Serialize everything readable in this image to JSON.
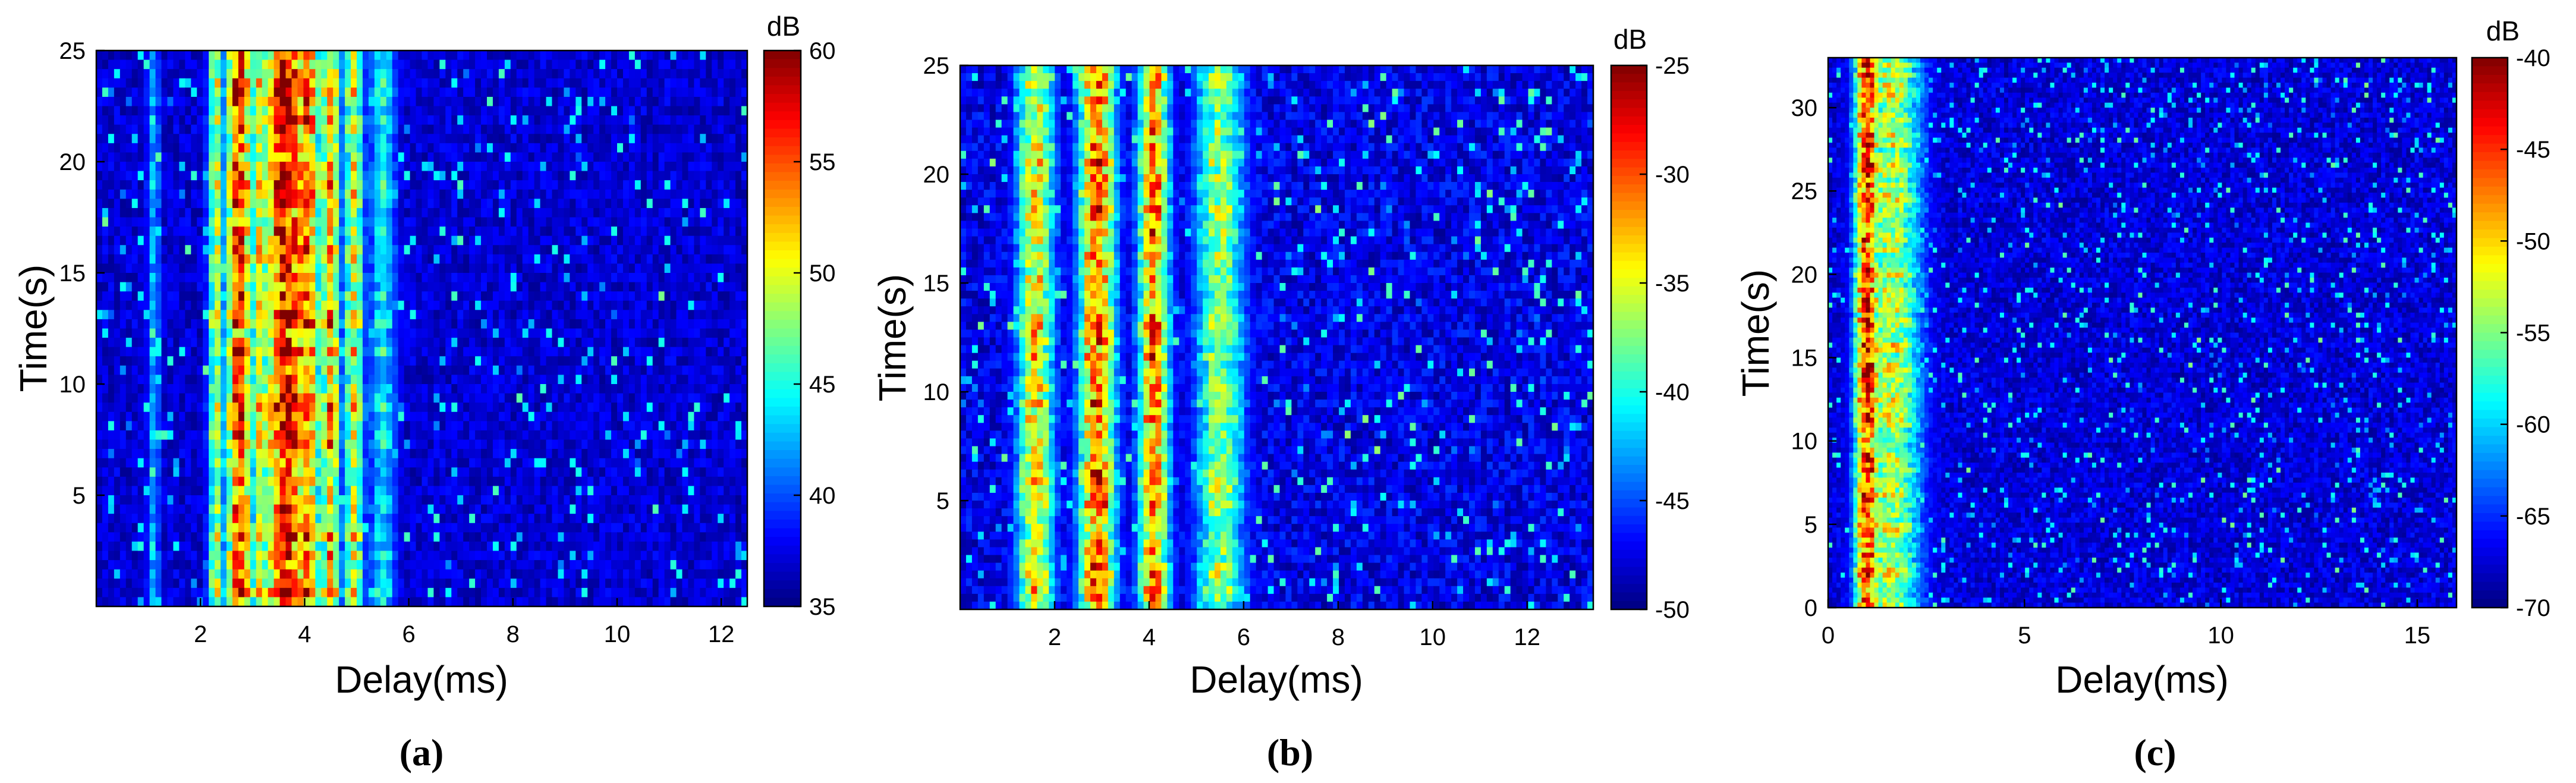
{
  "figure": {
    "panels": [
      "(a)",
      "(b)",
      "(c)"
    ]
  },
  "chart_data": [
    {
      "type": "heatmap",
      "panel_label": "(a)",
      "title": "",
      "xlabel": "Delay(ms)",
      "ylabel": "Time(s)",
      "xlim": [
        0,
        12.5
      ],
      "ylim": [
        0,
        25
      ],
      "xticks": [
        2,
        4,
        6,
        8,
        10,
        12
      ],
      "yticks": [
        5,
        10,
        15,
        20,
        25
      ],
      "colorbar": {
        "label": "dB",
        "min": 35,
        "max": 60,
        "ticks": [
          35,
          40,
          45,
          50,
          55,
          60
        ],
        "colormap": "jet"
      },
      "features": [
        {
          "delay_ms": 2.3,
          "level_db": 50,
          "width_ms": 0.12
        },
        {
          "delay_ms": 2.75,
          "level_db": 58,
          "width_ms": 0.2
        },
        {
          "delay_ms": 3.15,
          "level_db": 52,
          "width_ms": 0.15
        },
        {
          "delay_ms": 3.65,
          "level_db": 59,
          "width_ms": 0.35
        },
        {
          "delay_ms": 4.05,
          "level_db": 56,
          "width_ms": 0.2
        },
        {
          "delay_ms": 4.5,
          "level_db": 54,
          "width_ms": 0.15
        },
        {
          "delay_ms": 4.95,
          "level_db": 51,
          "width_ms": 0.15
        },
        {
          "delay_ms": 5.5,
          "level_db": 45,
          "width_ms": 0.2
        },
        {
          "delay_ms": 1.1,
          "level_db": 43,
          "width_ms": 0.1
        }
      ]
    },
    {
      "type": "heatmap",
      "panel_label": "(b)",
      "title": "",
      "xlabel": "Delay(ms)",
      "ylabel": "Time(s)",
      "xlim": [
        0,
        13.4
      ],
      "ylim": [
        0,
        25
      ],
      "xticks": [
        2,
        4,
        6,
        8,
        10,
        12
      ],
      "yticks": [
        5,
        10,
        15,
        20,
        25
      ],
      "colorbar": {
        "label": "dB",
        "min": -50,
        "max": -25,
        "ticks": [
          -50,
          -45,
          -40,
          -35,
          -30,
          -25
        ],
        "colormap": "jet"
      },
      "features": [
        {
          "delay_ms": 1.6,
          "level_db": -33,
          "width_ms": 0.3
        },
        {
          "delay_ms": 2.9,
          "level_db": -29,
          "width_ms": 0.3
        },
        {
          "delay_ms": 4.1,
          "level_db": -30,
          "width_ms": 0.25
        },
        {
          "delay_ms": 5.5,
          "level_db": -36,
          "width_ms": 0.4
        }
      ]
    },
    {
      "type": "heatmap",
      "panel_label": "(c)",
      "title": "",
      "xlabel": "Delay(ms)",
      "ylabel": "Time(s)",
      "xlim": [
        0,
        16
      ],
      "ylim": [
        0,
        33
      ],
      "xticks": [
        0,
        5,
        10,
        15
      ],
      "yticks": [
        0,
        5,
        10,
        15,
        20,
        25,
        30
      ],
      "colorbar": {
        "label": "dB",
        "min": -70,
        "max": -40,
        "ticks": [
          -70,
          -65,
          -60,
          -55,
          -50,
          -45,
          -40
        ],
        "colormap": "jet"
      },
      "features": [
        {
          "delay_ms": 1.0,
          "level_db": -43,
          "width_ms": 0.25
        },
        {
          "delay_ms": 1.6,
          "level_db": -52,
          "width_ms": 0.6
        }
      ]
    }
  ]
}
